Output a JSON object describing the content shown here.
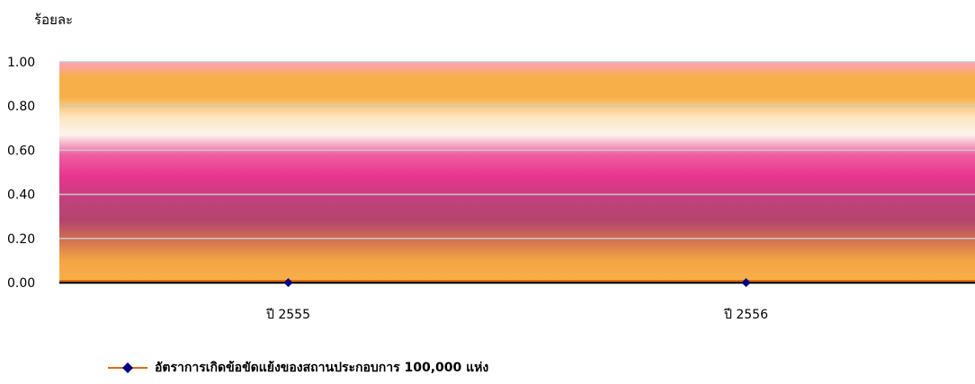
{
  "chart_data": {
    "type": "line",
    "title": "",
    "ylabel": "ร้อยละ",
    "xlabel": "",
    "categories": [
      "ปี 2555",
      "ปี 2556"
    ],
    "series": [
      {
        "name": "อัตราการเกิดข้อขัดแย้งของสถานประกอบการ 100,000 แห่ง",
        "values": [
          0,
          0
        ],
        "line_color": "#E36C09",
        "marker_color": "#000080"
      }
    ],
    "ylim": [
      0,
      1.0
    ],
    "yticks": [
      "0.00",
      "0.20",
      "0.40",
      "0.60",
      "0.80",
      "1.00"
    ],
    "grid": true,
    "legend_position": "bottom"
  }
}
